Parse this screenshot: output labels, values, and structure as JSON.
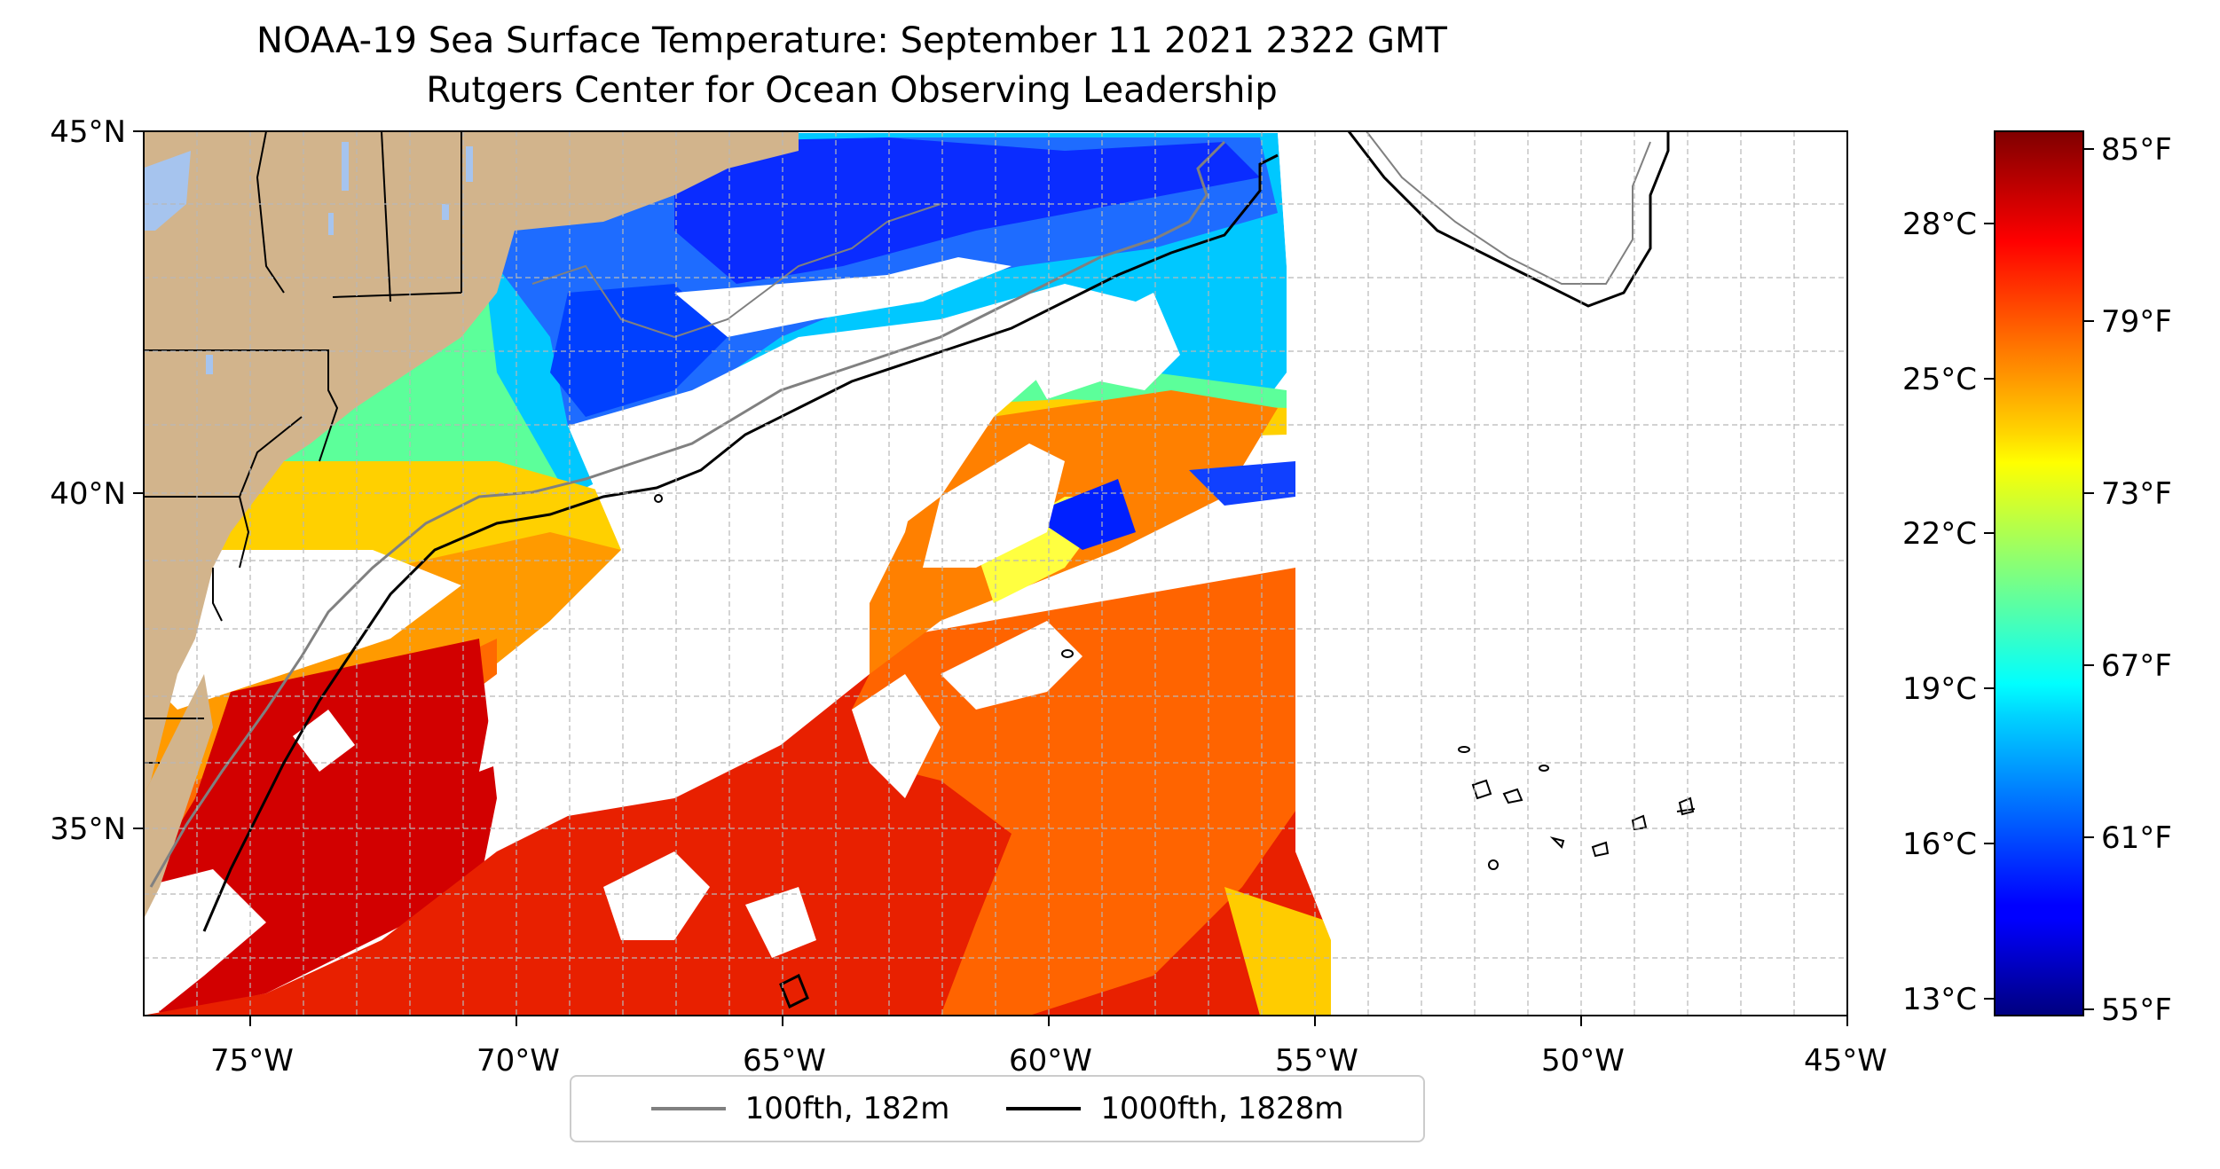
{
  "title": "NOAA-19 Sea Surface Temperature: September 11 2021 2322 GMT",
  "subtitle": "Rutgers Center for Ocean Observing Leadership",
  "map": {
    "lon_range": [
      -77,
      -45
    ],
    "lat_range": [
      32.2,
      45
    ],
    "lon_ticks": [
      "75°W",
      "70°W",
      "65°W",
      "60°W",
      "55°W",
      "50°W",
      "45°W"
    ],
    "lat_ticks": [
      "45°N",
      "40°N",
      "35°N"
    ],
    "grid": true,
    "land_color": "#d2b48c",
    "water_color": "#a6c4ee"
  },
  "legend": {
    "placement": "bottom-center",
    "items": [
      {
        "label": "100fth, 182m",
        "color": "#808080"
      },
      {
        "label": "1000fth, 1828m",
        "color": "#000000"
      }
    ]
  },
  "colorbar": {
    "colormap": "jet",
    "celsius_ticks": [
      "28°C",
      "25°C",
      "22°C",
      "19°C",
      "16°C",
      "13°C"
    ],
    "fahrenheit_ticks": [
      "85°F",
      "79°F",
      "73°F",
      "67°F",
      "61°F",
      "55°F"
    ]
  }
}
